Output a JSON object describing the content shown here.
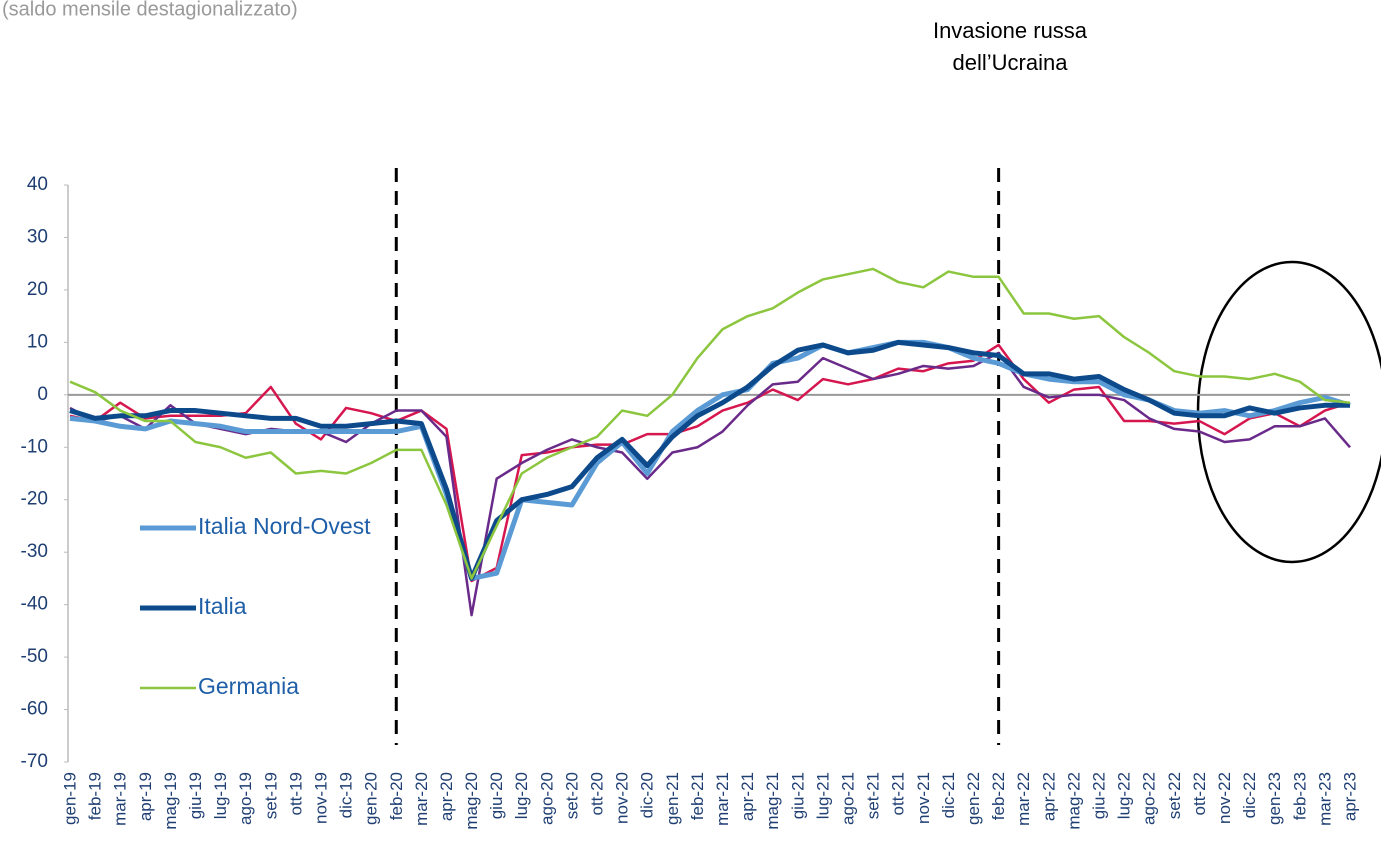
{
  "chart_data": {
    "type": "line",
    "subtitle": "(saldo mensile destagionalizzato)",
    "annotation": [
      "Invasione russa",
      "dell’Ucraina"
    ],
    "categories": [
      "gen-19",
      "feb-19",
      "mar-19",
      "apr-19",
      "mag-19",
      "giu-19",
      "lug-19",
      "ago-19",
      "set-19",
      "ott-19",
      "nov-19",
      "dic-19",
      "gen-20",
      "feb-20",
      "mar-20",
      "apr-20",
      "mag-20",
      "giu-20",
      "lug-20",
      "ago-20",
      "set-20",
      "ott-20",
      "nov-20",
      "dic-20",
      "gen-21",
      "feb-21",
      "mar-21",
      "apr-21",
      "mag-21",
      "giu-21",
      "lug-21",
      "ago-21",
      "set-21",
      "ott-21",
      "nov-21",
      "dic-21",
      "gen-22",
      "feb-22",
      "mar-22",
      "apr-22",
      "mag-22",
      "giu-22",
      "lug-22",
      "ago-22",
      "set-22",
      "ott-22",
      "nov-22",
      "dic-22",
      "gen-23",
      "feb-23",
      "mar-23",
      "apr-23"
    ],
    "series": [
      {
        "color": "#d6174f",
        "width": 2.5,
        "values": [
          -4,
          -5,
          -1.5,
          -4.5,
          -4,
          -4,
          -4,
          -3.5,
          1.5,
          -5.5,
          -8.5,
          -2.5,
          -3.5,
          -5,
          -3,
          -6.5,
          -35.5,
          -33,
          -11.5,
          -11,
          -10,
          -9.5,
          -9.5,
          -7.5,
          -7.5,
          -6,
          -3,
          -1.5,
          1,
          -1,
          3,
          2,
          3,
          5,
          4.5,
          6,
          6.5,
          9.5,
          3,
          -1.5,
          1,
          1.5,
          -5,
          -5,
          -5.5,
          -5,
          -7.5,
          -4.5,
          -3.5,
          -6,
          -3,
          -1.5
        ]
      },
      {
        "color": "#6a2a8a",
        "width": 2.5,
        "values": [
          -2.5,
          -5,
          -4,
          -6.5,
          -2,
          -5.5,
          -6.5,
          -7.5,
          -6.5,
          -7,
          -7,
          -9,
          -5.5,
          -3,
          -3,
          -8,
          -42,
          -16,
          -13,
          -10.5,
          -8.5,
          -10,
          -11,
          -16,
          -11,
          -10,
          -7,
          -2,
          2,
          2.5,
          7,
          5,
          3,
          4,
          5.5,
          5,
          5.5,
          8,
          1.5,
          -0.5,
          0,
          0,
          -1,
          -4.5,
          -6.5,
          -7,
          -9,
          -8.5,
          -6,
          -6,
          -4.5,
          -10
        ]
      },
      {
        "name": "Italia Nord-Ovest",
        "color": "#5b9bd5",
        "width": 5,
        "values": [
          -4.5,
          -5,
          -6,
          -6.5,
          -5,
          -5.5,
          -6,
          -7,
          -7,
          -7,
          -7,
          -7,
          -7,
          -7,
          -6,
          -19,
          -35,
          -34,
          -20,
          -20.5,
          -21,
          -13,
          -9,
          -15,
          -7,
          -3,
          0,
          1,
          6,
          7,
          9.5,
          8,
          9,
          10,
          10,
          9,
          7,
          6,
          4,
          3,
          2.5,
          2.5,
          0,
          -1,
          -3,
          -3.5,
          -3,
          -4,
          -3,
          -1.5,
          -0.5,
          -2
        ]
      },
      {
        "name": "Italia",
        "color": "#0d4a8c",
        "width": 5,
        "values": [
          -3,
          -4.5,
          -4,
          -4,
          -3,
          -3,
          -3.5,
          -4,
          -4.5,
          -4.5,
          -6,
          -6,
          -5.5,
          -5,
          -5.5,
          -18,
          -35,
          -24,
          -20,
          -19,
          -17.5,
          -12,
          -8.5,
          -13.5,
          -8,
          -4,
          -1.5,
          1.5,
          5.5,
          8.5,
          9.5,
          8,
          8.5,
          10,
          9.5,
          9,
          8,
          7.5,
          4,
          4,
          3,
          3.5,
          1,
          -1,
          -3.5,
          -4,
          -4,
          -2.5,
          -3.5,
          -2.5,
          -2,
          -2
        ]
      },
      {
        "name": "Germania",
        "color": "#8cc63f",
        "width": 2.5,
        "values": [
          2.5,
          0.5,
          -3,
          -5,
          -5,
          -9,
          -10,
          -12,
          -11,
          -15,
          -14.5,
          -15,
          -13,
          -10.5,
          -10.5,
          -21,
          -35,
          -25,
          -15,
          -12,
          -10,
          -8,
          -3,
          -4,
          0,
          7,
          12.5,
          15,
          16.5,
          19.5,
          22,
          23,
          24,
          21.5,
          20.5,
          23.5,
          22.5,
          22.5,
          15.5,
          15.5,
          14.5,
          15,
          11,
          8,
          4.5,
          3.5,
          3.5,
          3,
          4,
          2.5,
          -1,
          -1.5
        ]
      }
    ],
    "vlines": [
      "feb-20",
      "feb-22"
    ],
    "ylim": [
      -70,
      40
    ],
    "yticks": [
      -70,
      -60,
      -50,
      -40,
      -30,
      -20,
      -10,
      0,
      10,
      20,
      30,
      40
    ]
  }
}
